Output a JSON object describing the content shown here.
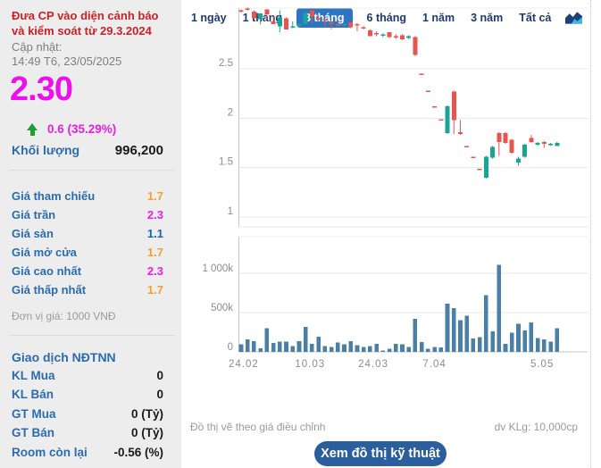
{
  "sidebar": {
    "warning": "Đưa CP vào diện cảnh báo và kiểm soát từ 29.3.2024",
    "updated_label": "Cập nhật:",
    "updated_value": "14:49 T6, 23/05/2025",
    "price": "2.30",
    "change": "0.6 (35.29%)",
    "volume_label": "Khối lượng",
    "volume_value": "996,200",
    "price_table": [
      {
        "label": "Giá tham chiếu",
        "value": "1.7",
        "color": "#f0a131"
      },
      {
        "label": "Giá trần",
        "value": "2.3",
        "color": "#e620e6"
      },
      {
        "label": "Giá sàn",
        "value": "1.1",
        "color": "#1566ab"
      },
      {
        "label": "Giá mở cửa",
        "value": "1.7",
        "color": "#f0a131"
      },
      {
        "label": "Giá cao nhất",
        "value": "2.3",
        "color": "#e620e6"
      },
      {
        "label": "Giá thấp nhất",
        "value": "1.7",
        "color": "#f0a131"
      }
    ],
    "unit_note": "Đơn vị giá: 1000 VNĐ",
    "foreign_header": "Giao dịch NĐTNN",
    "foreign_rows": [
      {
        "label": "KL Mua",
        "value": "0"
      },
      {
        "label": "KL Bán",
        "value": "0"
      },
      {
        "label": "GT Mua",
        "value": "0 (Tỷ)"
      },
      {
        "label": "GT Bán",
        "value": "0 (Tỷ)"
      },
      {
        "label": "Room còn lại",
        "value": "-0.56 (%)"
      }
    ]
  },
  "tabs": {
    "items": [
      "1 ngày",
      "1 tháng",
      "3 tháng",
      "6 tháng",
      "1 năm",
      "3 năm",
      "Tất cả"
    ],
    "active_index": 2,
    "active_bg": "#2d74c2"
  },
  "footer": {
    "note": "Đồ thị vẽ theo giá điều chỉnh",
    "unit": "dv KLg: 10,000cp",
    "button": "Xem đồ thị kỹ thuật"
  },
  "chart_data": {
    "type": "candlestick+volume",
    "title": "",
    "price_axis": {
      "ticks": [
        2.5,
        2,
        1.5,
        1
      ],
      "range_top": 3.15,
      "range_bottom": 0.9
    },
    "volume_axis": {
      "tick_labels": [
        "1 000k",
        "500k",
        "0"
      ],
      "tick_values_k": [
        1000,
        500,
        0
      ]
    },
    "x_ticks": [
      {
        "label": "24.02",
        "i": 0.4
      },
      {
        "label": "10.03",
        "i": 10.7
      },
      {
        "label": "24.03",
        "i": 20.5
      },
      {
        "label": "7.04",
        "i": 30.0
      },
      {
        "label": "5.05",
        "i": 46.7
      }
    ],
    "colors": {
      "up": "#18a496",
      "down": "#e4564e",
      "volume": "#4a7fa6",
      "grid": "#e9e9e9",
      "axis": "#c8c8c8",
      "axis_text": "#8c8c8c"
    },
    "candles_ohlc": [
      [
        3.09,
        3.1,
        3.07,
        3.09,
        "d"
      ],
      [
        3.11,
        3.12,
        3.09,
        3.11,
        "d"
      ],
      [
        3.08,
        3.09,
        3.01,
        3.01,
        "d"
      ],
      [
        3.0,
        3.06,
        2.95,
        3.06,
        "u"
      ],
      [
        3.1,
        3.1,
        3.0,
        3.05,
        "d"
      ],
      [
        2.98,
        3.04,
        2.95,
        2.95,
        "d"
      ],
      [
        2.93,
        3.09,
        2.87,
        3.02,
        "u"
      ],
      [
        3.01,
        3.02,
        2.9,
        2.9,
        "d"
      ],
      [
        2.92,
        2.98,
        2.91,
        2.93,
        "u"
      ],
      [
        2.93,
        2.96,
        2.92,
        2.95,
        "u"
      ],
      [
        2.95,
        3.07,
        2.95,
        3.07,
        "u"
      ],
      [
        3.09,
        3.09,
        2.96,
        3.03,
        "d"
      ],
      [
        3.01,
        3.04,
        2.99,
        3.01,
        "d"
      ],
      [
        3.0,
        3.01,
        2.93,
        2.99,
        "d"
      ],
      [
        2.97,
        2.98,
        2.9,
        2.96,
        "d"
      ],
      [
        2.95,
        2.96,
        2.93,
        2.94,
        "d"
      ],
      [
        2.94,
        2.96,
        2.93,
        2.95,
        "u"
      ],
      [
        2.97,
        2.97,
        2.91,
        2.92,
        "d"
      ],
      [
        2.95,
        2.96,
        2.88,
        2.94,
        "d"
      ],
      [
        2.92,
        2.93,
        2.9,
        2.91,
        "d"
      ],
      [
        2.89,
        2.9,
        2.83,
        2.83,
        "d"
      ],
      [
        2.86,
        2.88,
        2.83,
        2.85,
        "d"
      ],
      [
        2.84,
        2.86,
        2.82,
        2.85,
        "u"
      ],
      [
        2.87,
        2.87,
        2.81,
        2.82,
        "d"
      ],
      [
        2.83,
        2.85,
        2.8,
        2.82,
        "d"
      ],
      [
        2.84,
        2.85,
        2.79,
        2.8,
        "d"
      ],
      [
        2.81,
        2.84,
        2.8,
        2.83,
        "u"
      ],
      [
        2.82,
        2.83,
        2.63,
        2.64,
        "d"
      ],
      [
        2.45,
        2.45,
        2.45,
        2.45,
        "d"
      ],
      [
        2.28,
        2.28,
        2.28,
        2.28,
        "d"
      ],
      [
        2.12,
        2.12,
        2.12,
        2.12,
        "d"
      ],
      [
        1.99,
        1.99,
        1.99,
        1.99,
        "d"
      ],
      [
        1.85,
        2.13,
        1.84,
        2.12,
        "u"
      ],
      [
        2.27,
        2.28,
        1.84,
        1.98,
        "d"
      ],
      [
        1.86,
        1.98,
        1.83,
        1.84,
        "d"
      ],
      [
        1.72,
        1.72,
        1.72,
        1.72,
        "d"
      ],
      [
        1.61,
        1.61,
        1.61,
        1.61,
        "d"
      ],
      [
        1.49,
        1.49,
        1.49,
        1.49,
        "d"
      ],
      [
        1.4,
        1.62,
        1.39,
        1.61,
        "u"
      ],
      [
        1.6,
        1.72,
        1.59,
        1.71,
        "u"
      ],
      [
        1.85,
        1.86,
        1.62,
        1.76,
        "d"
      ],
      [
        1.85,
        1.86,
        1.74,
        1.75,
        "d"
      ],
      [
        1.78,
        1.79,
        1.64,
        1.65,
        "d"
      ],
      [
        1.55,
        1.61,
        1.52,
        1.59,
        "u"
      ],
      [
        1.61,
        1.74,
        1.6,
        1.73,
        "u"
      ],
      [
        1.8,
        1.83,
        1.75,
        1.76,
        "d"
      ],
      [
        1.73,
        1.76,
        1.72,
        1.75,
        "u"
      ],
      [
        1.76,
        1.77,
        1.7,
        1.74,
        "d"
      ],
      [
        1.73,
        1.75,
        1.72,
        1.74,
        "u"
      ],
      [
        1.72,
        1.76,
        1.72,
        1.75,
        "u"
      ]
    ],
    "volumes_k": [
      94,
      160,
      139,
      45,
      300,
      112,
      131,
      131,
      75,
      139,
      319,
      101,
      195,
      75,
      64,
      120,
      94,
      139,
      86,
      64,
      75,
      101,
      19,
      37,
      101,
      94,
      64,
      420,
      124,
      37,
      64,
      56,
      611,
      555,
      401,
      461,
      169,
      187,
      724,
      262,
      1106,
      101,
      244,
      356,
      274,
      375,
      176,
      161,
      131,
      300
    ]
  }
}
